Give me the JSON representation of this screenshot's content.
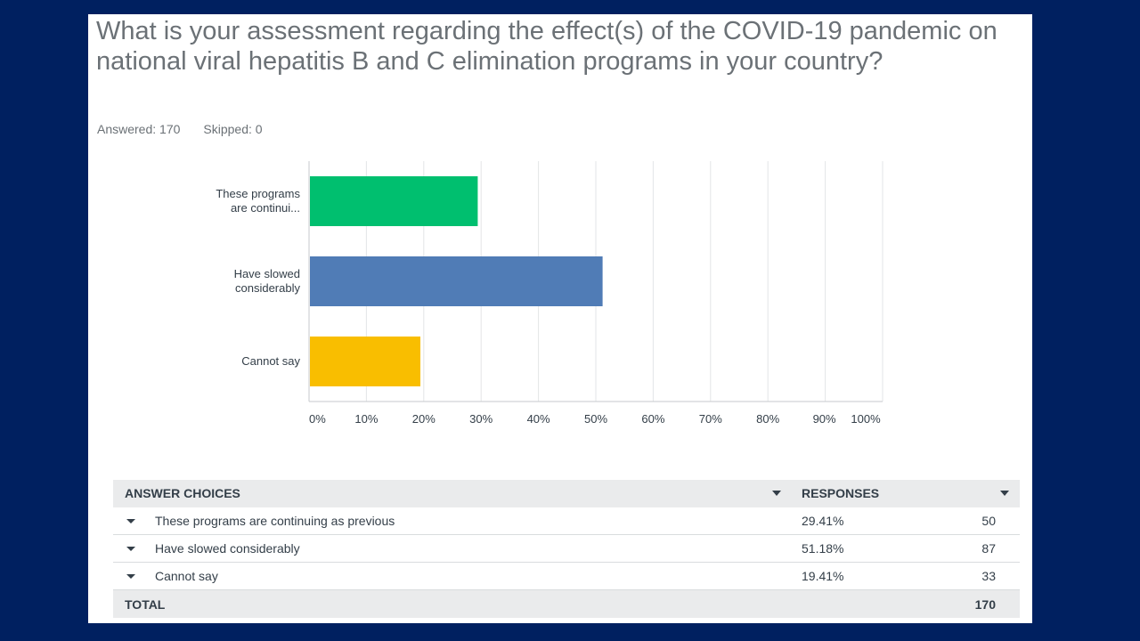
{
  "question": "What is your assessment regarding the effect(s) of the COVID-19 pandemic on national viral hepatitis B and C elimination programs in your country?",
  "answered": "Answered: 170",
  "skipped": "Skipped: 0",
  "chart_data": {
    "type": "bar",
    "orientation": "horizontal",
    "categories": [
      [
        "These programs",
        "are continui..."
      ],
      [
        "Have slowed",
        "considerably"
      ],
      [
        "Cannot say"
      ]
    ],
    "values": [
      29.41,
      51.18,
      19.41
    ],
    "colors": [
      "#00bf6f",
      "#507cb6",
      "#f9be00"
    ],
    "xlim": [
      0,
      100
    ],
    "ticks": [
      "0%",
      "10%",
      "20%",
      "30%",
      "40%",
      "50%",
      "60%",
      "70%",
      "80%",
      "90%",
      "100%"
    ],
    "grid": true,
    "title": "",
    "xlabel": "",
    "ylabel": ""
  },
  "table": {
    "header_choice": "ANSWER CHOICES",
    "header_responses": "RESPONSES",
    "rows": [
      {
        "label": "These programs are continuing as previous",
        "pct": "29.41%",
        "count": "50"
      },
      {
        "label": "Have slowed considerably",
        "pct": "51.18%",
        "count": "87"
      },
      {
        "label": "Cannot say",
        "pct": "19.41%",
        "count": "33"
      }
    ],
    "total_label": "TOTAL",
    "total_count": "170"
  }
}
